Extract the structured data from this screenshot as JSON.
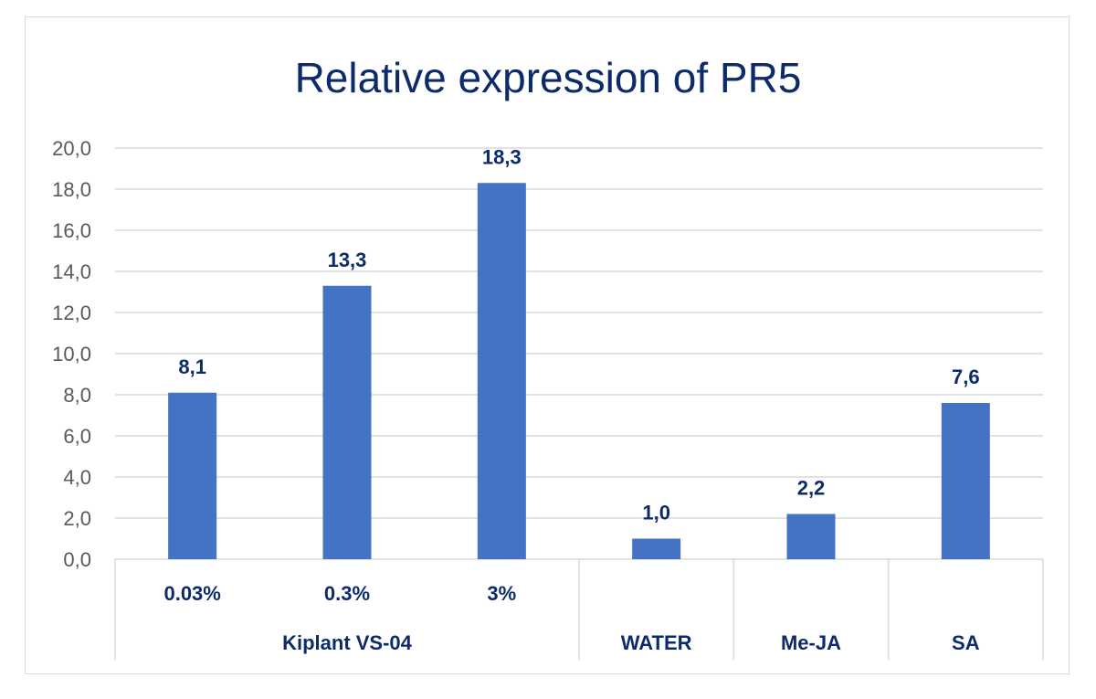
{
  "chart_data": {
    "type": "bar",
    "title": "Relative expression of PR5",
    "categories": [
      "0.03%",
      "0.3%",
      "3%",
      "",
      "",
      ""
    ],
    "groups": [
      {
        "label": "Kiplant VS-04",
        "categories": [
          "0.03%",
          "0.3%",
          "3%"
        ]
      },
      {
        "label": "WATER",
        "categories": [
          ""
        ]
      },
      {
        "label": "Me-JA",
        "categories": [
          ""
        ]
      },
      {
        "label": "SA",
        "categories": [
          ""
        ]
      }
    ],
    "values": [
      8.1,
      13.3,
      18.3,
      1.0,
      2.2,
      7.6
    ],
    "data_labels": [
      "8,1",
      "13,3",
      "18,3",
      "1,0",
      "2,2",
      "7,6"
    ],
    "yticks": [
      "0,0",
      "2,0",
      "4,0",
      "6,0",
      "8,0",
      "10,0",
      "12,0",
      "14,0",
      "16,0",
      "18,0",
      "20,0"
    ],
    "ylim": [
      0,
      20
    ],
    "grid": true,
    "xlabel": "",
    "ylabel": "",
    "colors": {
      "bar": "#4472c4",
      "text": "#0d2a6b",
      "grid": "#d9d9d9",
      "axis_text": "#595959"
    }
  }
}
